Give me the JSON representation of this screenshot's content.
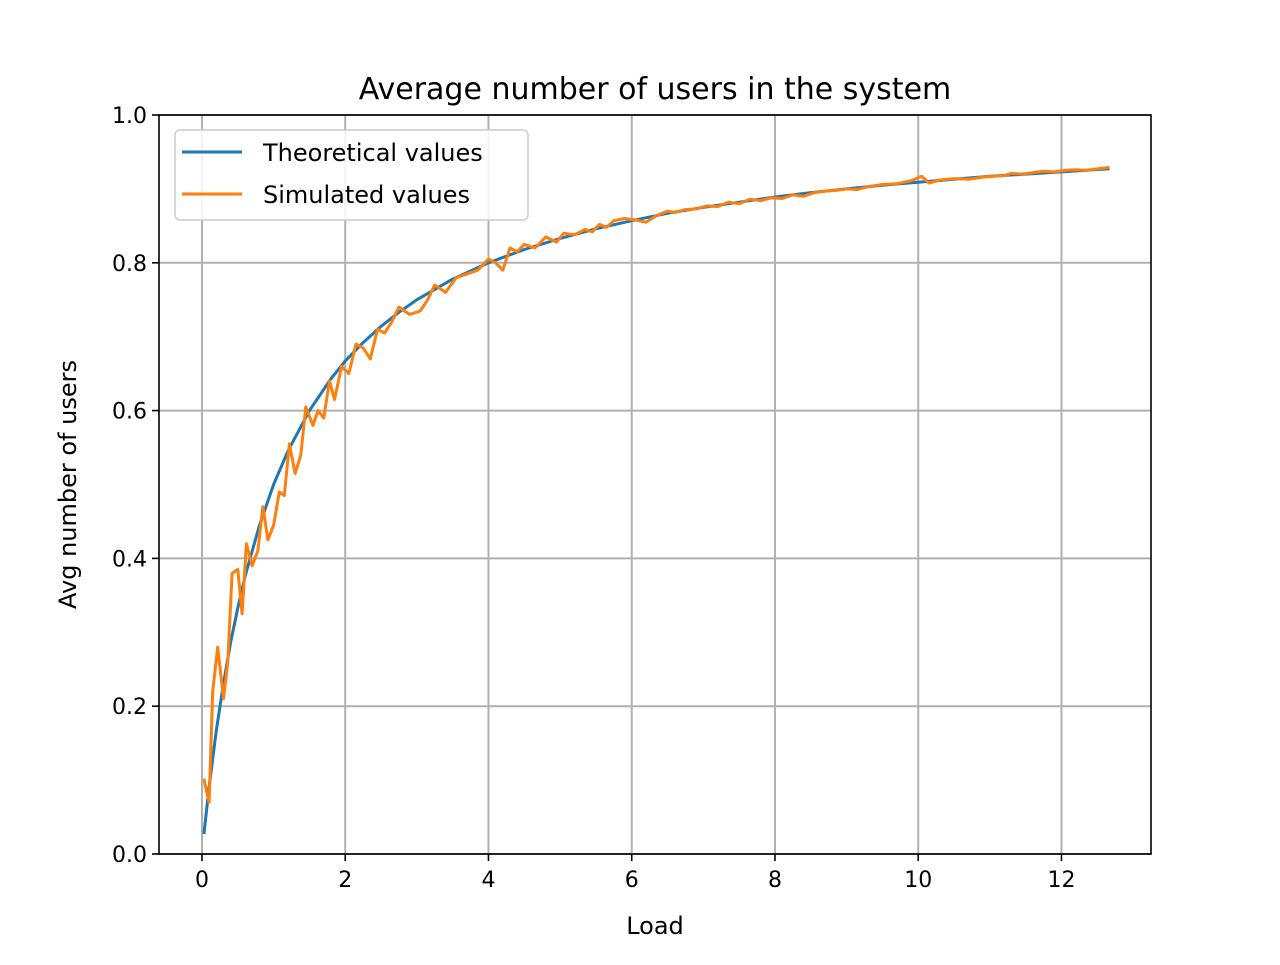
{
  "chart_data": {
    "type": "line",
    "title": "Average number of users in the system",
    "xlabel": "Load",
    "ylabel": "Avg number of users",
    "xlim": [
      -0.6,
      13.25
    ],
    "ylim": [
      0.0,
      1.0
    ],
    "xticks": [
      0,
      2,
      4,
      6,
      8,
      10,
      12
    ],
    "xtick_labels": [
      "0",
      "2",
      "4",
      "6",
      "8",
      "10",
      "12"
    ],
    "yticks": [
      0.0,
      0.2,
      0.4,
      0.6,
      0.8,
      1.0
    ],
    "ytick_labels": [
      "0.0",
      "0.2",
      "0.4",
      "0.6",
      "0.8",
      "1.0"
    ],
    "grid": true,
    "legend_position": "top-left",
    "series": [
      {
        "name": "Theoretical values",
        "color": "#1f77b4",
        "x": [
          0.03,
          0.1,
          0.2,
          0.3,
          0.4,
          0.5,
          0.6,
          0.8,
          1.0,
          1.2,
          1.5,
          1.8,
          2.0,
          2.25,
          2.5,
          2.75,
          3.0,
          3.5,
          4.0,
          4.5,
          5.0,
          5.5,
          6.0,
          6.5,
          7.0,
          7.5,
          8.0,
          8.5,
          9.0,
          9.5,
          10.0,
          10.5,
          11.0,
          11.5,
          12.0,
          12.65
        ],
        "y": [
          0.029,
          0.091,
          0.167,
          0.231,
          0.286,
          0.333,
          0.375,
          0.444,
          0.5,
          0.545,
          0.6,
          0.643,
          0.667,
          0.692,
          0.714,
          0.733,
          0.75,
          0.778,
          0.8,
          0.818,
          0.833,
          0.846,
          0.857,
          0.867,
          0.875,
          0.882,
          0.889,
          0.895,
          0.9,
          0.905,
          0.909,
          0.913,
          0.917,
          0.92,
          0.923,
          0.927
        ]
      },
      {
        "name": "Simulated values",
        "color": "#ff7f0e",
        "x": [
          0.03,
          0.1,
          0.15,
          0.22,
          0.3,
          0.36,
          0.42,
          0.5,
          0.56,
          0.62,
          0.7,
          0.78,
          0.85,
          0.92,
          1.0,
          1.08,
          1.15,
          1.22,
          1.3,
          1.38,
          1.45,
          1.55,
          1.62,
          1.7,
          1.78,
          1.85,
          1.95,
          2.05,
          2.15,
          2.25,
          2.35,
          2.45,
          2.55,
          2.65,
          2.75,
          2.9,
          3.05,
          3.15,
          3.25,
          3.4,
          3.55,
          3.7,
          3.85,
          4.0,
          4.1,
          4.2,
          4.3,
          4.4,
          4.5,
          4.65,
          4.8,
          4.95,
          5.05,
          5.2,
          5.35,
          5.45,
          5.55,
          5.65,
          5.75,
          5.9,
          6.05,
          6.2,
          6.35,
          6.5,
          6.6,
          6.75,
          6.9,
          7.05,
          7.2,
          7.35,
          7.5,
          7.65,
          7.8,
          7.95,
          8.1,
          8.25,
          8.4,
          8.55,
          8.7,
          8.85,
          9.0,
          9.15,
          9.3,
          9.5,
          9.7,
          9.9,
          10.05,
          10.15,
          10.3,
          10.5,
          10.7,
          10.9,
          11.05,
          11.2,
          11.3,
          11.45,
          11.6,
          11.75,
          11.9,
          12.05,
          12.2,
          12.35,
          12.5,
          12.65
        ],
        "y": [
          0.1,
          0.07,
          0.22,
          0.28,
          0.21,
          0.26,
          0.38,
          0.385,
          0.325,
          0.42,
          0.39,
          0.41,
          0.47,
          0.425,
          0.445,
          0.49,
          0.485,
          0.555,
          0.515,
          0.54,
          0.605,
          0.58,
          0.6,
          0.59,
          0.64,
          0.615,
          0.66,
          0.65,
          0.69,
          0.685,
          0.67,
          0.71,
          0.705,
          0.72,
          0.74,
          0.73,
          0.735,
          0.75,
          0.77,
          0.76,
          0.78,
          0.785,
          0.79,
          0.805,
          0.8,
          0.79,
          0.82,
          0.815,
          0.825,
          0.82,
          0.835,
          0.828,
          0.84,
          0.838,
          0.845,
          0.842,
          0.852,
          0.848,
          0.857,
          0.86,
          0.858,
          0.855,
          0.864,
          0.87,
          0.868,
          0.872,
          0.873,
          0.877,
          0.876,
          0.882,
          0.88,
          0.886,
          0.884,
          0.888,
          0.887,
          0.892,
          0.89,
          0.895,
          0.897,
          0.898,
          0.9,
          0.899,
          0.903,
          0.906,
          0.907,
          0.911,
          0.917,
          0.908,
          0.912,
          0.914,
          0.913,
          0.916,
          0.917,
          0.918,
          0.921,
          0.92,
          0.922,
          0.924,
          0.923,
          0.925,
          0.926,
          0.925,
          0.927,
          0.929
        ]
      }
    ]
  }
}
